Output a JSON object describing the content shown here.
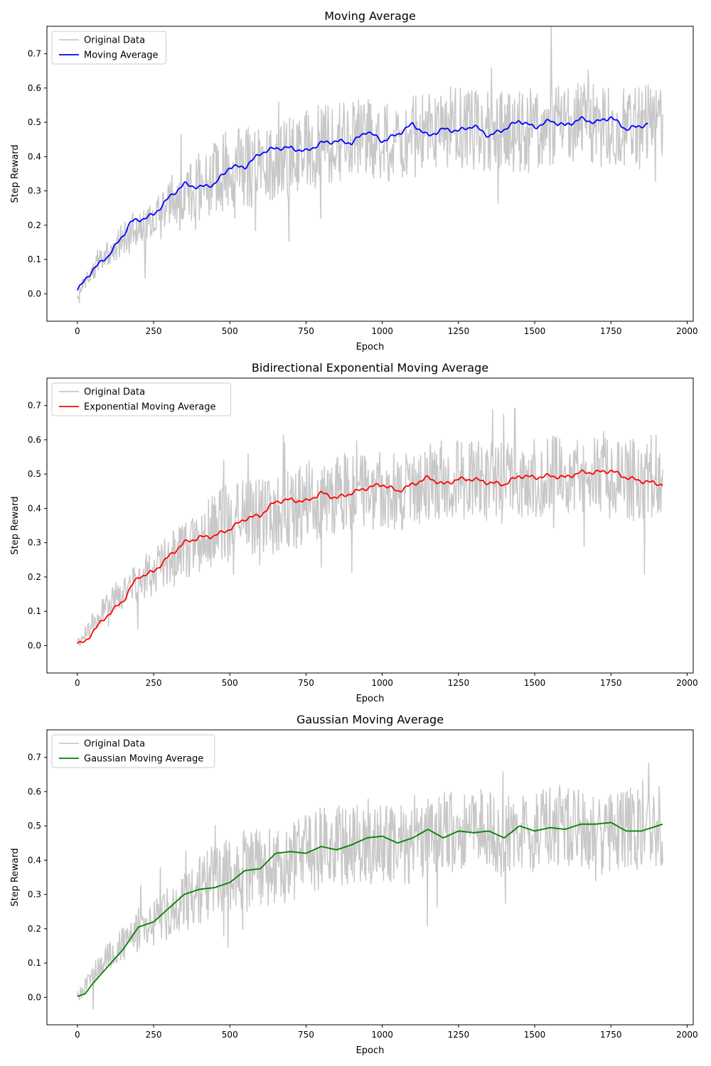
{
  "chart_data": [
    {
      "type": "line",
      "title": "Moving Average",
      "xlabel": "Epoch",
      "ylabel": "Step Reward",
      "xlim": [
        -100,
        2020
      ],
      "ylim": [
        -0.08,
        0.78
      ],
      "xticks": [
        0,
        250,
        500,
        750,
        1000,
        1250,
        1500,
        1750,
        2000
      ],
      "yticks": [
        0.0,
        0.1,
        0.2,
        0.3,
        0.4,
        0.5,
        0.6,
        0.7
      ],
      "legend_position": "top-left",
      "series": [
        {
          "name": "Original Data",
          "color": "#c8c8c8",
          "kind": "noisy",
          "x_end": 1920
        },
        {
          "name": "Moving Average",
          "color": "#0000ff",
          "kind": "smooth",
          "x_end": 1875,
          "x": [
            0,
            50,
            100,
            150,
            175,
            200,
            250,
            300,
            350,
            400,
            450,
            500,
            550,
            600,
            650,
            700,
            750,
            800,
            850,
            900,
            950,
            1000,
            1050,
            1100,
            1150,
            1200,
            1250,
            1300,
            1350,
            1400,
            1450,
            1500,
            1550,
            1600,
            1650,
            1700,
            1750,
            1800,
            1875
          ],
          "y": [
            0.01,
            0.07,
            0.11,
            0.17,
            0.21,
            0.215,
            0.23,
            0.28,
            0.32,
            0.31,
            0.32,
            0.37,
            0.37,
            0.41,
            0.425,
            0.425,
            0.415,
            0.44,
            0.445,
            0.44,
            0.475,
            0.445,
            0.465,
            0.495,
            0.46,
            0.48,
            0.475,
            0.49,
            0.46,
            0.48,
            0.505,
            0.485,
            0.505,
            0.49,
            0.51,
            0.5,
            0.515,
            0.48,
            0.495
          ]
        }
      ]
    },
    {
      "type": "line",
      "title": "Bidirectional Exponential Moving Average",
      "xlabel": "Epoch",
      "ylabel": "Step Reward",
      "xlim": [
        -100,
        2020
      ],
      "ylim": [
        -0.08,
        0.78
      ],
      "xticks": [
        0,
        250,
        500,
        750,
        1000,
        1250,
        1500,
        1750,
        2000
      ],
      "yticks": [
        0.0,
        0.1,
        0.2,
        0.3,
        0.4,
        0.5,
        0.6,
        0.7
      ],
      "legend_position": "top-left",
      "series": [
        {
          "name": "Original Data",
          "color": "#c8c8c8",
          "kind": "noisy",
          "x_end": 1920
        },
        {
          "name": "Exponential Moving Average",
          "color": "#ff0000",
          "kind": "smooth",
          "x_end": 1920,
          "x": [
            0,
            25,
            50,
            100,
            150,
            175,
            200,
            250,
            300,
            350,
            400,
            450,
            500,
            550,
            600,
            650,
            700,
            750,
            800,
            850,
            900,
            950,
            1000,
            1050,
            1100,
            1150,
            1200,
            1250,
            1300,
            1350,
            1400,
            1450,
            1500,
            1550,
            1600,
            1650,
            1700,
            1750,
            1800,
            1850,
            1920
          ],
          "y": [
            0.005,
            0.01,
            0.04,
            0.09,
            0.13,
            0.17,
            0.2,
            0.215,
            0.26,
            0.3,
            0.315,
            0.32,
            0.34,
            0.37,
            0.38,
            0.42,
            0.425,
            0.42,
            0.445,
            0.43,
            0.445,
            0.46,
            0.47,
            0.45,
            0.47,
            0.49,
            0.47,
            0.485,
            0.485,
            0.475,
            0.47,
            0.495,
            0.49,
            0.495,
            0.49,
            0.505,
            0.505,
            0.51,
            0.49,
            0.48,
            0.47
          ]
        }
      ]
    },
    {
      "type": "line",
      "title": "Gaussian Moving Average",
      "xlabel": "Epoch",
      "ylabel": "Step Reward",
      "xlim": [
        -100,
        2020
      ],
      "ylim": [
        -0.08,
        0.78
      ],
      "xticks": [
        0,
        250,
        500,
        750,
        1000,
        1250,
        1500,
        1750,
        2000
      ],
      "yticks": [
        0.0,
        0.1,
        0.2,
        0.3,
        0.4,
        0.5,
        0.6,
        0.7
      ],
      "legend_position": "top-left",
      "series": [
        {
          "name": "Original Data",
          "color": "#c8c8c8",
          "kind": "noisy",
          "x_end": 1920
        },
        {
          "name": "Gaussian Moving Average",
          "color": "#008000",
          "kind": "smooth",
          "x_end": 1920,
          "x": [
            0,
            25,
            50,
            100,
            150,
            200,
            250,
            300,
            350,
            400,
            450,
            500,
            550,
            600,
            650,
            700,
            750,
            800,
            850,
            900,
            950,
            1000,
            1050,
            1100,
            1150,
            1200,
            1250,
            1300,
            1350,
            1400,
            1450,
            1500,
            1550,
            1600,
            1650,
            1700,
            1750,
            1800,
            1850,
            1920
          ],
          "y": [
            0.003,
            0.01,
            0.04,
            0.09,
            0.14,
            0.205,
            0.22,
            0.26,
            0.3,
            0.315,
            0.32,
            0.335,
            0.37,
            0.375,
            0.42,
            0.425,
            0.42,
            0.44,
            0.43,
            0.445,
            0.465,
            0.47,
            0.45,
            0.465,
            0.49,
            0.465,
            0.485,
            0.48,
            0.485,
            0.465,
            0.5,
            0.485,
            0.495,
            0.49,
            0.505,
            0.505,
            0.51,
            0.485,
            0.485,
            0.505
          ]
        }
      ]
    }
  ]
}
